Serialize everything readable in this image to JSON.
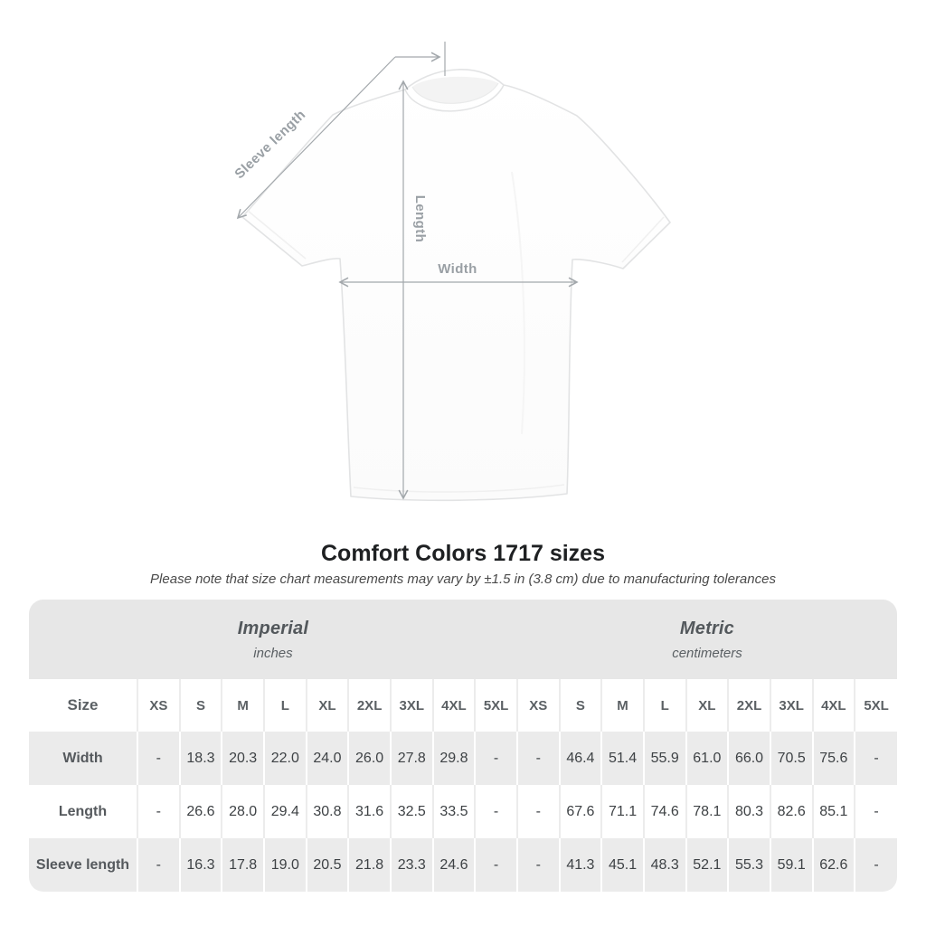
{
  "diagram": {
    "labels": {
      "sleeve_length": "Sleeve length",
      "length": "Length",
      "width": "Width"
    }
  },
  "chart_data": {
    "type": "table",
    "title": "Comfort Colors 1717 sizes",
    "subtitle": "Please note that size chart measurements may vary by ±1.5 in (3.8 cm) due to manufacturing tolerances",
    "size_header_label": "Size",
    "column_groups": [
      {
        "label": "Imperial",
        "unit": "inches"
      },
      {
        "label": "Metric",
        "unit": "centimeters"
      }
    ],
    "sizes": [
      "XS",
      "S",
      "M",
      "L",
      "XL",
      "2XL",
      "3XL",
      "4XL",
      "5XL"
    ],
    "rows": [
      {
        "label": "Width",
        "imperial": [
          "-",
          "18.3",
          "20.3",
          "22.0",
          "24.0",
          "26.0",
          "27.8",
          "29.8",
          "-"
        ],
        "metric": [
          "-",
          "46.4",
          "51.4",
          "55.9",
          "61.0",
          "66.0",
          "70.5",
          "75.6",
          "-"
        ]
      },
      {
        "label": "Length",
        "imperial": [
          "-",
          "26.6",
          "28.0",
          "29.4",
          "30.8",
          "31.6",
          "32.5",
          "33.5",
          "-"
        ],
        "metric": [
          "-",
          "67.6",
          "71.1",
          "74.6",
          "78.1",
          "80.3",
          "82.6",
          "85.1",
          "-"
        ]
      },
      {
        "label": "Sleeve length",
        "imperial": [
          "-",
          "16.3",
          "17.8",
          "19.0",
          "20.5",
          "21.8",
          "23.3",
          "24.6",
          "-"
        ],
        "metric": [
          "-",
          "41.3",
          "45.1",
          "48.3",
          "52.1",
          "55.3",
          "59.1",
          "62.6",
          "-"
        ]
      }
    ]
  },
  "colors": {
    "table_header_bg": "#e7e7e7",
    "row_stripe_bg": "#ebebeb",
    "annotation_gray": "#9aa0a5",
    "title_text": "#1e2022",
    "muted_text": "#53585c"
  }
}
